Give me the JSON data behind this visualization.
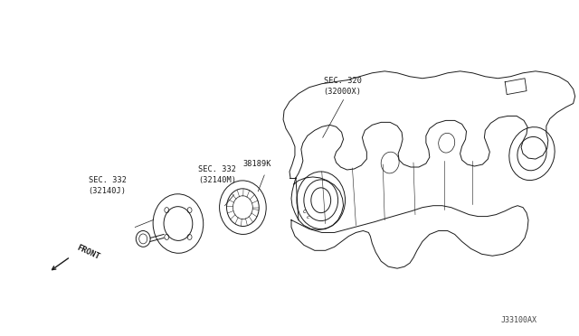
{
  "bg_color": "#ffffff",
  "line_color": "#1a1a1a",
  "fig_width": 6.4,
  "fig_height": 3.72,
  "dpi": 100,
  "labels": {
    "sec320": "SEC. 320\n(32000X)",
    "sec332m": "SEC. 332\n(32140M)",
    "sec332j": "SEC. 332\n(32140J)",
    "part_num": "38189K",
    "diagram_code": "J33100AX",
    "front": "FRONT"
  }
}
